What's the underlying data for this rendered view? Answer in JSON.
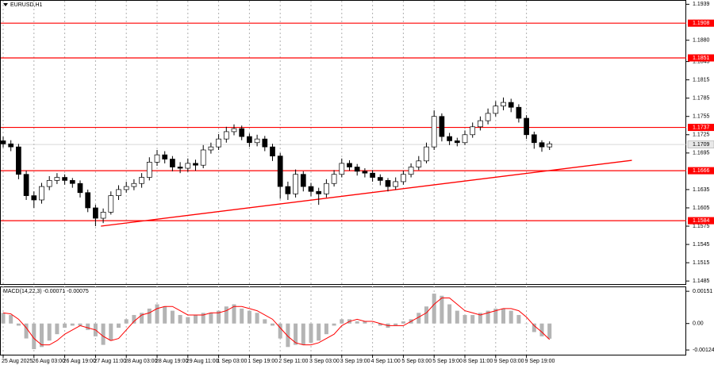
{
  "chart_data": [
    {
      "type": "candlestick",
      "title": "EURUSD,H1",
      "categories": [
        "25 Aug 2025",
        null,
        null,
        null,
        "26 Aug 03:00",
        null,
        null,
        null,
        "26 Aug 19:00",
        null,
        null,
        null,
        "27 Aug 11:00",
        null,
        null,
        null,
        "28 Aug 03:00",
        null,
        null,
        null,
        "28 Aug 19:00",
        null,
        null,
        null,
        "29 Aug 11:00",
        null,
        null,
        null,
        "1 Sep 03:00",
        null,
        null,
        null,
        "1 Sep 19:00",
        null,
        null,
        null,
        "2 Sep 11:00",
        null,
        null,
        null,
        "3 Sep 03:00",
        null,
        null,
        null,
        "3 Sep 19:00",
        null,
        null,
        null,
        "4 Sep 11:00",
        null,
        null,
        null,
        "5 Sep 03:00",
        null,
        null,
        null,
        "5 Sep 19:00",
        null,
        null,
        null,
        "8 Sep 11:00",
        null,
        null,
        null,
        "9 Sep 03:00",
        null,
        null,
        null,
        "9 Sep 19:00",
        null,
        null,
        null
      ],
      "open": [
        1.1715,
        1.171,
        1.1705,
        1.166,
        1.1625,
        1.1618,
        1.164,
        1.165,
        1.1655,
        1.165,
        1.1645,
        1.163,
        1.1605,
        1.1588,
        1.1598,
        1.1625,
        1.1635,
        1.164,
        1.1645,
        1.1655,
        1.168,
        1.1692,
        1.1685,
        1.1672,
        1.167,
        1.1678,
        1.1675,
        1.17,
        1.1705,
        1.1718,
        1.173,
        1.1735,
        1.1722,
        1.1712,
        1.1718,
        1.1705,
        1.169,
        1.164,
        1.1628,
        1.166,
        1.164,
        1.1632,
        1.1628,
        1.1645,
        1.166,
        1.1678,
        1.1672,
        1.1665,
        1.1662,
        1.1655,
        1.165,
        1.164,
        1.1648,
        1.166,
        1.1672,
        1.1682,
        1.1705,
        1.1755,
        1.1722,
        1.1715,
        1.1712,
        1.1725,
        1.1738,
        1.1748,
        1.176,
        1.1772,
        1.1778,
        1.177,
        1.1752,
        1.1725,
        1.1712,
        1.1705
      ],
      "high": [
        1.1722,
        1.1716,
        1.171,
        1.1666,
        1.1632,
        1.1646,
        1.1657,
        1.1662,
        1.166,
        1.1654,
        1.165,
        1.1635,
        1.161,
        1.1604,
        1.1632,
        1.1642,
        1.1648,
        1.1652,
        1.1662,
        1.1688,
        1.17,
        1.1698,
        1.169,
        1.168,
        1.1686,
        1.1684,
        1.1708,
        1.1712,
        1.1726,
        1.1738,
        1.1742,
        1.174,
        1.1727,
        1.1725,
        1.1723,
        1.171,
        1.1695,
        1.1648,
        1.1668,
        1.1665,
        1.1646,
        1.1638,
        1.1652,
        1.1667,
        1.1686,
        1.1683,
        1.1677,
        1.167,
        1.1667,
        1.166,
        1.1654,
        1.1655,
        1.1666,
        1.1678,
        1.169,
        1.1712,
        1.1765,
        1.176,
        1.1728,
        1.172,
        1.1732,
        1.1745,
        1.1755,
        1.1768,
        1.178,
        1.1786,
        1.1784,
        1.1775,
        1.1757,
        1.173,
        1.1716,
        1.1714
      ],
      "low": [
        1.1704,
        1.1698,
        1.1652,
        1.1618,
        1.1605,
        1.1612,
        1.1634,
        1.1644,
        1.1643,
        1.1638,
        1.1622,
        1.1598,
        1.1575,
        1.158,
        1.1594,
        1.1618,
        1.163,
        1.1634,
        1.1638,
        1.165,
        1.1674,
        1.1678,
        1.1665,
        1.1662,
        1.1664,
        1.1666,
        1.167,
        1.1694,
        1.17,
        1.1712,
        1.1724,
        1.1716,
        1.1705,
        1.1706,
        1.1698,
        1.1682,
        1.162,
        1.1618,
        1.1622,
        1.1632,
        1.1624,
        1.161,
        1.1622,
        1.164,
        1.1655,
        1.1666,
        1.1658,
        1.1655,
        1.1648,
        1.1642,
        1.1632,
        1.1635,
        1.1643,
        1.1655,
        1.1667,
        1.1678,
        1.17,
        1.1714,
        1.1708,
        1.1706,
        1.1708,
        1.172,
        1.1732,
        1.1742,
        1.1755,
        1.1765,
        1.1762,
        1.1745,
        1.1718,
        1.1702,
        1.1697,
        1.17
      ],
      "close": [
        1.171,
        1.1705,
        1.166,
        1.1625,
        1.1618,
        1.164,
        1.165,
        1.1655,
        1.165,
        1.1645,
        1.163,
        1.1605,
        1.1588,
        1.1598,
        1.1625,
        1.1635,
        1.164,
        1.1645,
        1.1655,
        1.168,
        1.1692,
        1.1685,
        1.1672,
        1.167,
        1.1678,
        1.1675,
        1.17,
        1.1705,
        1.1718,
        1.173,
        1.1735,
        1.1722,
        1.1712,
        1.1718,
        1.1705,
        1.169,
        1.164,
        1.1628,
        1.166,
        1.164,
        1.1632,
        1.1628,
        1.1645,
        1.166,
        1.1678,
        1.1672,
        1.1665,
        1.1662,
        1.1655,
        1.165,
        1.164,
        1.1648,
        1.166,
        1.1672,
        1.1682,
        1.1705,
        1.1755,
        1.1722,
        1.1715,
        1.1712,
        1.1725,
        1.1738,
        1.1748,
        1.176,
        1.1772,
        1.1778,
        1.177,
        1.1752,
        1.1725,
        1.1712,
        1.1705,
        1.171
      ],
      "ylim": [
        1.148,
        1.1946
      ],
      "yticks": [
        1.1939,
        {
          "value": 1.188,
          "label": "1.1880"
        },
        1.1845,
        1.1815,
        1.1785,
        1.1755,
        1.1725,
        1.1695,
        1.1635,
        1.1605,
        1.1575,
        1.1545,
        1.1515,
        1.1485
      ],
      "levels": [
        1.1908,
        1.1851,
        1.1737,
        1.1666,
        1.1584
      ],
      "level_color": "#ff0000",
      "current_price": 1.1709,
      "trendline": {
        "x": [
          12.7,
          81.7
        ],
        "y": [
          1.1575,
          1.1683
        ],
        "color": "#ff0000"
      }
    },
    {
      "type": "macd",
      "title": "MACD(14,22,3) -0.00071 -0.00075",
      "histogram": [
        0.0005,
        0.0004,
        -0.0001,
        -0.0007,
        -0.0012,
        -0.0011,
        -0.0008,
        -0.0005,
        -0.0002,
        -0.0001,
        -0.0001,
        -0.0003,
        -0.0006,
        -0.001,
        -0.0008,
        -0.0002,
        0.0002,
        0.0004,
        0.0005,
        0.0007,
        0.0009,
        0.0008,
        0.0006,
        0.0004,
        0.0003,
        0.0004,
        0.0005,
        0.0005,
        0.0006,
        0.0008,
        0.0009,
        0.0007,
        0.0006,
        0.0005,
        0.0002,
        -0.0001,
        -0.0007,
        -0.0011,
        -0.001,
        -0.001,
        -0.0009,
        -0.0008,
        -0.0005,
        -0.0001,
        0.0002,
        0.0002,
        0.0001,
        0.0001,
        0,
        -0.0001,
        -0.0002,
        -0.0001,
        0.0001,
        0.0002,
        0.0005,
        0.0008,
        0.0014,
        0.0013,
        0.0009,
        0.0006,
        0.0004,
        0.0004,
        0.0005,
        0.0006,
        0.0007,
        0.0007,
        0.0006,
        0.0004,
        0,
        -0.0004,
        -0.0006,
        -0.00071
      ],
      "histogram_color": "#b4b4b4",
      "signal": [
        0.0005,
        0.00045,
        0.0002,
        -0.0002,
        -0.0007,
        -0.001,
        -0.001,
        -0.0008,
        -0.0005,
        -0.0003,
        -0.0001,
        -0.0002,
        -0.0003,
        -0.0006,
        -0.0008,
        -0.0007,
        -0.0003,
        0.0001,
        0.0004,
        0.0005,
        0.0007,
        0.0008,
        0.0008,
        0.0006,
        0.0004,
        0.0004,
        0.0004,
        0.0005,
        0.0005,
        0.0006,
        0.0008,
        0.0008,
        0.0007,
        0.0006,
        0.0004,
        0.0002,
        -0.0002,
        -0.0006,
        -0.0009,
        -0.001,
        -0.001,
        -0.0009,
        -0.0007,
        -0.0005,
        -0.0001,
        0.0001,
        0.0002,
        0.0001,
        0.0001,
        0,
        -0.0001,
        -0.0001,
        -0.0001,
        0.0001,
        0.0003,
        0.0005,
        0.0009,
        0.0012,
        0.0012,
        0.0009,
        0.0006,
        0.0005,
        0.0004,
        0.0005,
        0.0006,
        0.0007,
        0.0007,
        0.0006,
        0.0003,
        -0.0001,
        -0.0004,
        -0.00075
      ],
      "signal_color": "#ff0000",
      "ylim": [
        -0.00146,
        0.0017
      ],
      "yticks": [
        0.00151,
        {
          "value": 0,
          "label": "0.00"
        },
        -0.00124
      ]
    }
  ]
}
